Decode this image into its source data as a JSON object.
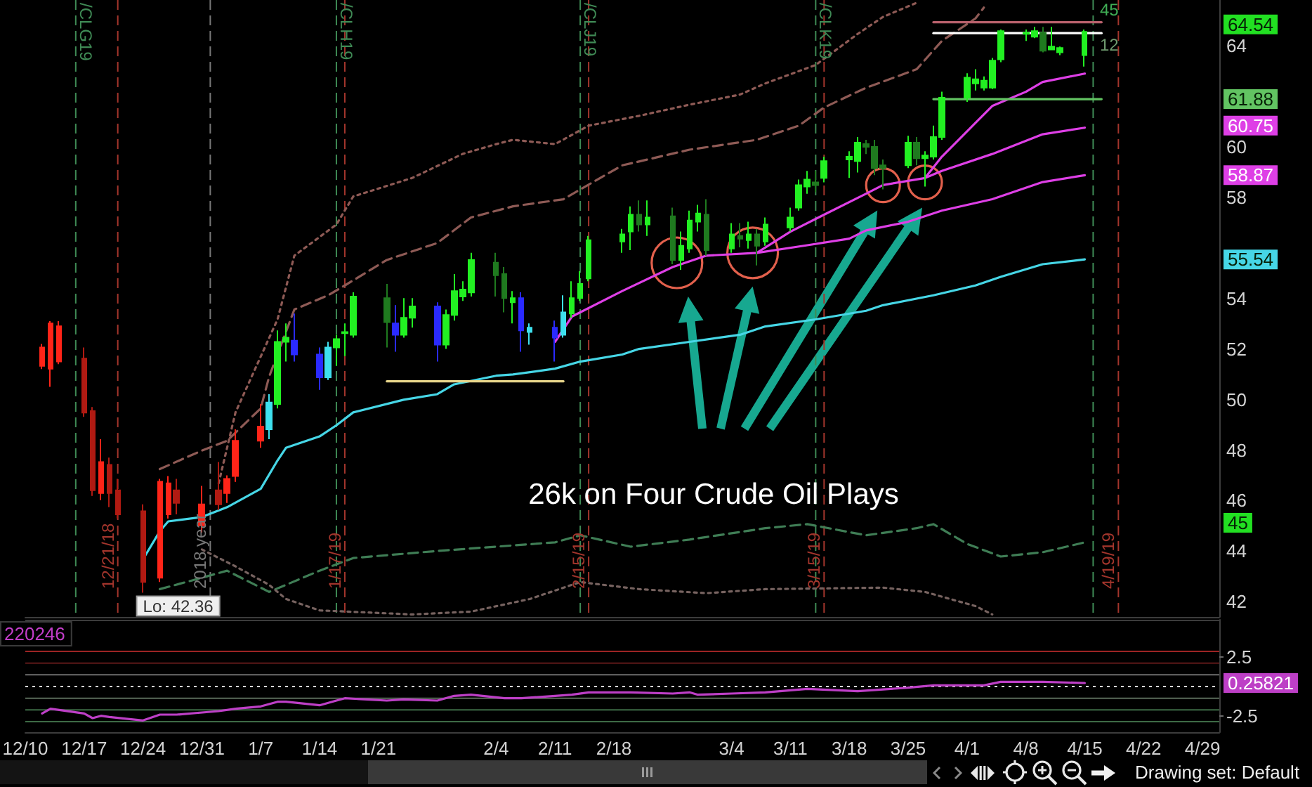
{
  "chart_data": [
    {
      "type": "candlestick",
      "series": [
        {
          "x": [
            "2018-12-12",
            "2018-12-13",
            "2018-12-14",
            "2018-12-17",
            "2018-12-18",
            "2018-12-19",
            "2018-12-20",
            "2018-12-21",
            "2018-12-24",
            "2018-12-26",
            "2018-12-27",
            "2018-12-28",
            "2018-12-31",
            "2019-01-02",
            "2019-01-03",
            "2019-01-04",
            "2019-01-07",
            "2019-01-08",
            "2019-01-09",
            "2019-01-10",
            "2019-01-11",
            "2019-01-14",
            "2019-01-15",
            "2019-01-16",
            "2019-01-17",
            "2019-01-18",
            "2019-01-22",
            "2019-01-23",
            "2019-01-24",
            "2019-01-25",
            "2019-01-28",
            "2019-01-29",
            "2019-01-30",
            "2019-01-31",
            "2019-02-01",
            "2019-02-04",
            "2019-02-05",
            "2019-02-06",
            "2019-02-07",
            "2019-02-08",
            "2019-02-11",
            "2019-02-12",
            "2019-02-13",
            "2019-02-14",
            "2019-02-15",
            "2019-02-19",
            "2019-02-20",
            "2019-02-21",
            "2019-02-22",
            "2019-02-25",
            "2019-02-26",
            "2019-02-27",
            "2019-02-28",
            "2019-03-01",
            "2019-03-04",
            "2019-03-05",
            "2019-03-06",
            "2019-03-07",
            "2019-03-08",
            "2019-03-11",
            "2019-03-12",
            "2019-03-13",
            "2019-03-14",
            "2019-03-15",
            "2019-03-18",
            "2019-03-19",
            "2019-03-20",
            "2019-03-21",
            "2019-03-22",
            "2019-03-25",
            "2019-03-26",
            "2019-03-27",
            "2019-03-28",
            "2019-03-29",
            "2019-04-01",
            "2019-04-02",
            "2019-04-03",
            "2019-04-04",
            "2019-04-05",
            "2019-04-08",
            "2019-04-09",
            "2019-04-10",
            "2019-04-11",
            "2019-04-12",
            "2019-04-15"
          ],
          "ohlc": [
            [
              52.06,
              52.2,
              51.2,
              51.33
            ],
            [
              51.22,
              53.1,
              50.5,
              53.01
            ],
            [
              52.9,
              53.1,
              51.4,
              51.5
            ],
            [
              51.62,
              52.06,
              49.31,
              49.48
            ],
            [
              49.54,
              49.7,
              46.19,
              46.41
            ],
            [
              46.3,
              48.43,
              46.02,
              47.53
            ],
            [
              47.42,
              47.7,
              45.74,
              46.3
            ],
            [
              46.41,
              46.86,
              45.3,
              45.46
            ],
            [
              45.58,
              45.85,
              42.36,
              42.78
            ],
            [
              42.95,
              46.86,
              42.78,
              46.75
            ],
            [
              46.69,
              46.97,
              45.29,
              45.46
            ],
            [
              45.91,
              46.86,
              45.46,
              46.41
            ],
            [
              45.85,
              46.58,
              44.74,
              45.02
            ],
            [
              45.85,
              47.53,
              45.63,
              46.41
            ],
            [
              46.3,
              47.0,
              45.91,
              46.86
            ],
            [
              46.97,
              48.82,
              46.74,
              48.37
            ],
            [
              48.37,
              49.82,
              48.09,
              48.93
            ],
            [
              48.82,
              50.21,
              48.43,
              49.88
            ],
            [
              49.82,
              52.73,
              49.65,
              52.28
            ],
            [
              52.28,
              53.01,
              51.5,
              52.45
            ],
            [
              52.33,
              53.4,
              51.5,
              51.78
            ],
            [
              51.78,
              52.06,
              50.38,
              50.88
            ],
            [
              50.88,
              52.28,
              50.77,
              52.06
            ],
            [
              52.06,
              52.56,
              51.33,
              52.39
            ],
            [
              52.62,
              53.01,
              51.72,
              52.67
            ],
            [
              52.56,
              54.24,
              52.45,
              54.07
            ],
            [
              54.01,
              54.57,
              52.06,
              53.06
            ],
            [
              53.01,
              53.73,
              51.89,
              52.56
            ],
            [
              52.56,
              54.01,
              52.45,
              53.23
            ],
            [
              53.23,
              54.01,
              52.84,
              53.68
            ],
            [
              53.68,
              53.84,
              51.5,
              52.17
            ],
            [
              52.17,
              53.56,
              52.0,
              53.34
            ],
            [
              53.34,
              54.96,
              53.12,
              54.29
            ],
            [
              54.07,
              54.68,
              53.9,
              54.35
            ],
            [
              54.23,
              55.8,
              54.07,
              55.52
            ],
            [
              55.41,
              55.8,
              54.07,
              54.91
            ],
            [
              54.96,
              55.24,
              53.45,
              54.01
            ],
            [
              53.84,
              54.29,
              53.01,
              54.01
            ],
            [
              54.01,
              54.24,
              51.89,
              52.73
            ],
            [
              52.67,
              53.01,
              52.17,
              52.84
            ],
            [
              52.84,
              53.12,
              51.5,
              52.45
            ],
            [
              52.56,
              54.12,
              52.45,
              53.45
            ],
            [
              53.4,
              54.68,
              53.23,
              54.01
            ],
            [
              54.01,
              55.07,
              53.9,
              54.57
            ],
            [
              54.79,
              56.47,
              54.68,
              56.3
            ],
            [
              56.25,
              56.75,
              55.8,
              56.53
            ],
            [
              56.64,
              57.64,
              55.91,
              57.31
            ],
            [
              57.31,
              57.87,
              56.64,
              56.92
            ],
            [
              56.92,
              57.87,
              56.47,
              57.2
            ],
            [
              57.25,
              57.59,
              55.35,
              55.52
            ],
            [
              55.52,
              56.64,
              55.13,
              56.08
            ],
            [
              55.97,
              57.47,
              55.8,
              57.08
            ],
            [
              57.03,
              57.7,
              56.64,
              57.36
            ],
            [
              57.31,
              57.92,
              55.69,
              55.91
            ],
            [
              55.97,
              56.98,
              55.8,
              56.53
            ],
            [
              56.47,
              56.98,
              56.02,
              56.36
            ],
            [
              56.3,
              57.03,
              55.97,
              56.53
            ],
            [
              56.53,
              56.75,
              55.3,
              56.08
            ],
            [
              56.25,
              57.2,
              56.08,
              56.92
            ],
            [
              56.8,
              57.59,
              56.64,
              57.2
            ],
            [
              57.59,
              58.7,
              57.47,
              58.48
            ],
            [
              58.42,
              59.04,
              58.14,
              58.7
            ],
            [
              58.59,
              59.04,
              58.2,
              58.48
            ],
            [
              58.76,
              59.6,
              58.59,
              59.43
            ],
            [
              59.49,
              59.82,
              58.76,
              59.6
            ],
            [
              59.43,
              60.38,
              58.98,
              60.16
            ],
            [
              60.1,
              60.27,
              59.71,
              59.99
            ],
            [
              59.99,
              60.27,
              58.87,
              59.15
            ],
            [
              59.15,
              59.49,
              58.31,
              59.26
            ],
            [
              59.26,
              60.43,
              59.15,
              60.16
            ],
            [
              60.16,
              60.38,
              59.26,
              59.54
            ],
            [
              59.54,
              59.82,
              58.42,
              59.65
            ],
            [
              59.6,
              60.83,
              59.49,
              60.38
            ],
            [
              60.38,
              62.17,
              60.27,
              61.94
            ],
            [
              61.94,
              62.9,
              61.77,
              62.73
            ],
            [
              62.67,
              63.06,
              62.22,
              62.5
            ],
            [
              62.33,
              62.78,
              62.22,
              62.61
            ],
            [
              62.33,
              63.51,
              62.28,
              63.4
            ],
            [
              63.45,
              64.63,
              63.34,
              64.57
            ],
            [
              64.51,
              64.63,
              64.18,
              64.46
            ],
            [
              64.35,
              64.74,
              64.29,
              64.57
            ],
            [
              64.51,
              64.74,
              63.73,
              63.79
            ],
            [
              63.96,
              64.74,
              63.84,
              63.84
            ],
            [
              63.9,
              63.96,
              63.62,
              63.73
            ],
            [
              63.62,
              64.63,
              63.17,
              64.54
            ]
          ],
          "colors": [
            "#ff2418",
            "#ff2418",
            "#ff2418",
            "#b01a12",
            "#b01a12",
            "#ff2418",
            "#b01a12",
            "#b01a12",
            "#b01a12",
            "#ff2418",
            "#ff2418",
            "#b01a12",
            "#ff2418",
            "#b01a12",
            "#ff2418",
            "#ff2418",
            "#ff2418",
            "#3ee0ee",
            "#22f022",
            "#22f022",
            "#2a2aff",
            "#2a2aff",
            "#3ee0ee",
            "#22f022",
            "#22f022",
            "#22f022",
            "#1f7a1f",
            "#2a2aff",
            "#22f022",
            "#22f022",
            "#2a2aff",
            "#22f022",
            "#22f022",
            "#22f022",
            "#22f022",
            "#1f7a1f",
            "#1f7a1f",
            "#22f022",
            "#2a2aff",
            "#3ee0ee",
            "#2a2aff",
            "#3ee0ee",
            "#22f022",
            "#22f022",
            "#22f022",
            "#22f022",
            "#22f022",
            "#1f7a1f",
            "#22f022",
            "#1f7a1f",
            "#22f022",
            "#22f022",
            "#22f022",
            "#1f7a1f",
            "#22f022",
            "#1f7a1f",
            "#22f022",
            "#1f7a1f",
            "#22f022",
            "#22f022",
            "#22f022",
            "#22f022",
            "#1f7a1f",
            "#22f022",
            "#22f022",
            "#22f022",
            "#1f7a1f",
            "#1f7a1f",
            "#1f7a1f",
            "#22f022",
            "#1f7a1f",
            "#22f022",
            "#22f022",
            "#22f022",
            "#22f022",
            "#22f022",
            "#22f022",
            "#22f022",
            "#22f022",
            "#22f022",
            "#22f022",
            "#1f7a1f",
            "#22f022",
            "#22f022",
            "#22f022"
          ]
        },
        {
          "type": "line",
          "x": [
            "2018-12-24",
            "2018-12-26",
            "2018-12-27",
            "2018-12-31",
            "2019-01-03",
            "2019-01-07",
            "2019-01-09",
            "2019-01-10",
            "2019-01-14",
            "2019-01-16",
            "2019-01-18",
            "2019-01-24",
            "2019-01-28",
            "2019-01-30",
            "2019-02-04",
            "2019-02-06",
            "2019-02-11",
            "2019-02-14",
            "2019-02-19",
            "2019-02-21",
            "2019-02-27",
            "2019-03-05",
            "2019-03-08",
            "2019-03-14",
            "2019-03-20",
            "2019-03-22",
            "2019-03-28",
            "2019-04-02",
            "2019-04-05",
            "2019-04-10",
            "2019-04-15"
          ],
          "values": [
            43.68,
            44.79,
            45.18,
            45.35,
            45.74,
            46.47,
            47.59,
            48.09,
            48.54,
            48.98,
            49.49,
            49.99,
            50.21,
            50.6,
            50.94,
            50.99,
            51.22,
            51.5,
            51.78,
            52.0,
            52.28,
            52.56,
            52.89,
            53.17,
            53.51,
            53.73,
            54.12,
            54.51,
            54.85,
            55.35,
            55.54
          ],
          "color": "#46d6e6"
        },
        {
          "type": "line",
          "x": [
            "2019-02-11",
            "2019-02-13",
            "2019-02-19",
            "2019-02-25",
            "2019-03-01",
            "2019-03-07",
            "2019-03-13",
            "2019-03-18",
            "2019-03-20",
            "2019-03-25",
            "2019-03-29",
            "2019-04-04",
            "2019-04-10",
            "2019-04-15"
          ],
          "values": [
            52.28,
            53.28,
            54.29,
            55.24,
            55.69,
            55.8,
            56.1,
            56.36,
            56.69,
            57.03,
            57.47,
            57.92,
            58.6,
            58.87
          ],
          "color": "#de3fe6"
        },
        {
          "type": "line",
          "x": [
            "2019-03-07",
            "2019-03-11",
            "2019-03-15",
            "2019-03-20",
            "2019-03-22",
            "2019-03-27",
            "2019-03-29",
            "2019-04-04",
            "2019-04-10",
            "2019-04-15"
          ],
          "values": [
            55.8,
            56.64,
            57.31,
            58.14,
            58.48,
            58.76,
            59.04,
            59.71,
            60.49,
            60.75
          ],
          "color": "#de3fe6"
        },
        {
          "type": "line",
          "x": [
            "2019-03-27",
            "2019-03-29",
            "2019-04-02",
            "2019-04-04",
            "2019-04-08",
            "2019-04-10",
            "2019-04-15"
          ],
          "values": [
            58.76,
            59.6,
            60.94,
            61.61,
            62.17,
            62.56,
            62.89
          ],
          "color": "#de3fe6"
        },
        {
          "type": "line",
          "x": [
            "2018-12-26",
            "2018-12-31",
            "2019-01-03",
            "2019-01-07",
            "2019-01-08",
            "2019-01-11",
            "2019-01-15",
            "2019-01-17",
            "2019-01-22",
            "2019-01-28",
            "2019-02-01",
            "2019-02-06",
            "2019-02-12",
            "2019-02-14",
            "2019-02-19",
            "2019-02-27",
            "2019-03-07",
            "2019-03-12",
            "2019-03-15",
            "2019-03-20",
            "2019-03-26",
            "2019-03-29",
            "2019-04-02",
            "2019-04-03"
          ],
          "values": [
            47.25,
            47.98,
            48.37,
            49.65,
            50.9,
            53.56,
            54.12,
            54.51,
            55.52,
            56.19,
            57.2,
            57.64,
            57.92,
            58.31,
            59.26,
            59.88,
            60.27,
            60.83,
            61.55,
            62.33,
            63.06,
            64.18,
            65.07,
            65.5
          ],
          "color": "#8e5a55",
          "line_style": "dashed"
        },
        {
          "type": "line",
          "x": [
            "2019-01-02",
            "2019-01-04",
            "2019-01-09",
            "2019-01-11",
            "2019-01-16",
            "2019-01-18",
            "2019-01-25",
            "2019-01-31",
            "2019-02-04",
            "2019-02-06",
            "2019-02-11",
            "2019-02-15",
            "2019-02-21",
            "2019-02-27",
            "2019-03-05",
            "2019-03-08",
            "2019-03-14",
            "2019-03-19",
            "2019-03-22",
            "2019-03-26"
          ],
          "values": [
            46.69,
            49.49,
            53.17,
            55.69,
            56.92,
            58.03,
            58.76,
            59.71,
            60.1,
            60.27,
            60.1,
            60.83,
            61.22,
            61.66,
            62.06,
            62.5,
            63.23,
            64.46,
            65.13,
            65.69
          ],
          "color": "#8e5a55",
          "line_style": "dotted"
        },
        {
          "type": "line",
          "x": [
            "2018-12-26",
            "2018-12-31",
            "2019-01-03",
            "2019-01-08",
            "2019-01-14",
            "2019-01-18",
            "2019-01-28",
            "2019-02-04",
            "2019-02-11",
            "2019-02-14",
            "2019-02-20",
            "2019-02-27",
            "2019-03-08",
            "2019-03-13",
            "2019-03-20",
            "2019-03-26",
            "2019-03-28",
            "2019-04-01",
            "2019-04-05",
            "2019-04-10",
            "2019-04-15"
          ],
          "values": [
            42.5,
            42.95,
            43.23,
            42.39,
            43.23,
            43.73,
            44.01,
            44.18,
            44.35,
            44.63,
            44.18,
            44.46,
            44.91,
            45.07,
            44.63,
            44.91,
            45.07,
            44.29,
            43.79,
            43.96,
            44.35
          ],
          "color": "#3f7d55",
          "line_style": "dashed"
        },
        {
          "type": "line",
          "x": [
            "2018-12-31",
            "2019-01-04",
            "2019-01-08",
            "2019-01-10",
            "2019-01-14",
            "2019-01-25",
            "2019-02-01",
            "2019-02-08",
            "2019-02-14",
            "2019-02-21",
            "2019-03-01",
            "2019-03-08",
            "2019-03-22",
            "2019-03-27",
            "2019-04-02",
            "2019-04-04"
          ],
          "values": [
            44.07,
            43.4,
            42.67,
            42.11,
            41.66,
            41.5,
            41.61,
            42.11,
            42.78,
            42.5,
            42.34,
            42.5,
            42.56,
            42.39,
            41.83,
            41.5
          ],
          "color": "#76625f",
          "line_style": "dotted"
        },
        {
          "type": "line",
          "x": [
            "2019-01-22",
            "2019-02-12"
          ],
          "values": [
            50.72,
            50.72
          ],
          "color": "#e6d48a"
        },
        {
          "type": "line",
          "x": [
            "2019-03-28",
            "2019-04-17"
          ],
          "values": [
            64.92,
            64.92
          ],
          "color": "#b8606c"
        },
        {
          "type": "line",
          "x": [
            "2019-03-28",
            "2019-04-17"
          ],
          "values": [
            64.49,
            64.49
          ],
          "color": "#ffffff"
        },
        {
          "type": "line",
          "x": [
            "2019-03-28",
            "2019-04-17"
          ],
          "values": [
            61.88,
            61.88
          ],
          "color": "#62c462"
        }
      ],
      "xlim": [
        "2018-12-10",
        "2019-05-01"
      ],
      "ylim": [
        41.4,
        65.8
      ],
      "yticks": [
        42,
        44,
        46,
        48,
        50,
        52,
        54,
        58,
        60,
        64
      ],
      "tick_labels": "y",
      "ref_lines": [
        {
          "axis": "x",
          "value": "2018-12-16",
          "label": "/CLG19",
          "color": "#3f8a55",
          "line_style": "dashed"
        },
        {
          "axis": "x",
          "value": "2019-01-16",
          "label": "/CLH19",
          "color": "#3f8a55",
          "line_style": "dashed"
        },
        {
          "axis": "x",
          "value": "2019-02-14",
          "label": "/CLJ19",
          "color": "#3f8a55",
          "line_style": "dashed"
        },
        {
          "axis": "x",
          "value": "2019-03-14",
          "label": "/CLK19",
          "color": "#3f8a55",
          "line_style": "dashed"
        },
        {
          "axis": "x",
          "value": "2019-04-16",
          "color": "#3f8a55",
          "line_style": "dashed"
        },
        {
          "axis": "x",
          "value": "2018-12-21",
          "label": "12/21/18",
          "color": "#a3352c",
          "line_style": "dashed"
        },
        {
          "axis": "x",
          "value": "2019-01-17",
          "label": "1/17/19",
          "color": "#a3352c",
          "line_style": "dashed"
        },
        {
          "axis": "x",
          "value": "2019-02-15",
          "label": "2/15/19",
          "color": "#a3352c",
          "line_style": "dashed"
        },
        {
          "axis": "x",
          "value": "2019-03-15",
          "label": "3/15/19",
          "color": "#a3352c",
          "line_style": "dashed"
        },
        {
          "axis": "x",
          "value": "2019-04-19",
          "label": "4/19/19",
          "color": "#a3352c",
          "line_style": "dashed"
        },
        {
          "axis": "x",
          "value": "2019-01-01",
          "label": "2018 year",
          "color": "#787878",
          "line_style": "dashed"
        }
      ],
      "annotations": [
        "26k on Four Crude Oil Plays",
        {
          "text": "Lo: 42.36",
          "x": "2018-12-24",
          "y": 42.36
        },
        "64.54",
        "61.88",
        "60.75",
        "58.87",
        "55.54",
        "45",
        "45",
        "12"
      ]
    },
    {
      "type": "line",
      "series": [
        {
          "x": [
            "2018-12-12",
            "2018-12-13",
            "2018-12-17",
            "2018-12-18",
            "2018-12-19",
            "2018-12-20",
            "2018-12-24",
            "2018-12-26",
            "2018-12-28",
            "2019-01-02",
            "2019-01-04",
            "2019-01-07",
            "2019-01-09",
            "2019-01-10",
            "2019-01-14",
            "2019-01-16",
            "2019-01-17",
            "2019-01-22",
            "2019-01-24",
            "2019-01-28",
            "2019-01-30",
            "2019-02-01",
            "2019-02-05",
            "2019-02-07",
            "2019-02-11",
            "2019-02-13",
            "2019-02-15",
            "2019-02-20",
            "2019-02-25",
            "2019-02-27",
            "2019-02-28",
            "2019-03-04",
            "2019-03-08",
            "2019-03-13",
            "2019-03-19",
            "2019-03-25",
            "2019-03-28",
            "2019-04-03",
            "2019-04-05",
            "2019-04-10",
            "2019-04-15"
          ],
          "values": [
            -2.3,
            -1.9,
            -2.3,
            -2.7,
            -2.5,
            -2.6,
            -2.9,
            -2.4,
            -2.4,
            -2.1,
            -1.9,
            -1.7,
            -1.3,
            -1.3,
            -1.6,
            -1.2,
            -1.0,
            -1.2,
            -1.1,
            -1.2,
            -0.8,
            -0.7,
            -1.0,
            -1.0,
            -0.8,
            -0.7,
            -0.5,
            -0.5,
            -0.6,
            -0.5,
            -0.7,
            -0.6,
            -0.5,
            -0.2,
            -0.4,
            -0.1,
            0.1,
            0.1,
            0.4,
            0.4,
            0.3
          ],
          "color": "#bd3fc6"
        }
      ],
      "xlim": [
        "2018-12-10",
        "2019-05-01"
      ],
      "xticks": [
        {
          "value": "2018-12-10",
          "label": "12/10"
        },
        {
          "value": "2018-12-17",
          "label": "12/17"
        },
        {
          "value": "2018-12-24",
          "label": "12/24"
        },
        {
          "value": "2018-12-31",
          "label": "12/31"
        },
        {
          "value": "2019-01-07",
          "label": "1/7"
        },
        {
          "value": "2019-01-14",
          "label": "1/14"
        },
        {
          "value": "2019-01-21",
          "label": "1/21"
        },
        {
          "value": "2019-02-04",
          "label": "2/4"
        },
        {
          "value": "2019-02-11",
          "label": "2/11"
        },
        {
          "value": "2019-02-18",
          "label": "2/18"
        },
        {
          "value": "2019-03-04",
          "label": "3/4"
        },
        {
          "value": "2019-03-11",
          "label": "3/11"
        },
        {
          "value": "2019-03-18",
          "label": "3/18"
        },
        {
          "value": "2019-03-25",
          "label": "3/25"
        },
        {
          "value": "2019-04-01",
          "label": "4/1"
        },
        {
          "value": "2019-04-08",
          "label": "4/8"
        },
        {
          "value": "2019-04-15",
          "label": "4/15"
        },
        {
          "value": "2019-04-22",
          "label": "4/22"
        },
        {
          "value": "2019-04-29",
          "label": "4/29"
        }
      ],
      "ylim": [
        -3.9,
        5.7
      ],
      "yticks": [
        -2.5,
        2.5
      ],
      "ref_lines": [
        {
          "axis": "y",
          "value": 3,
          "color": "#9c2424"
        },
        {
          "axis": "y",
          "value": 2,
          "color": "#5c1818"
        },
        {
          "axis": "y",
          "value": 1,
          "color": "#6c6c6c"
        },
        {
          "axis": "y",
          "value": 0,
          "color": "#d8d8d8",
          "line_style": "dotted"
        },
        {
          "axis": "y",
          "value": -1,
          "color": "#5a6a5a"
        },
        {
          "axis": "y",
          "value": -2,
          "color": "#3d6a45"
        },
        {
          "axis": "y",
          "value": -3,
          "color": "#3d6a45"
        }
      ],
      "annotations": [
        "220246",
        "0.25821",
        "Drawing set: Default"
      ]
    }
  ]
}
